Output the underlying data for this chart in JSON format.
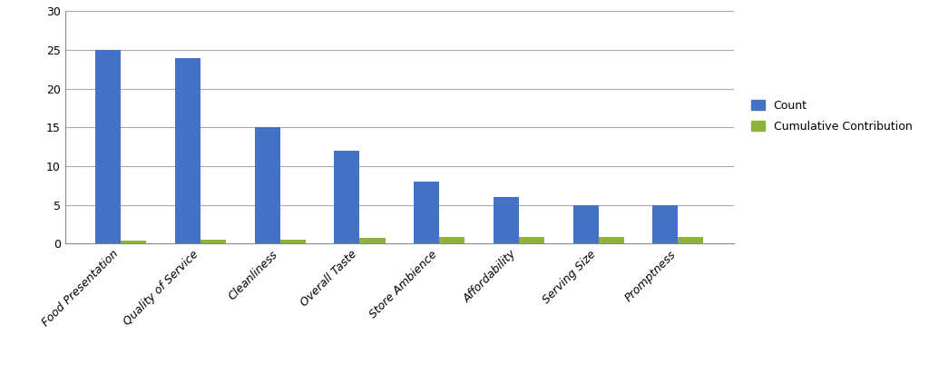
{
  "categories": [
    "Food Presentation",
    "Quality of Service",
    "Cleanliness",
    "Overall Taste",
    "Store Ambience",
    "Affordability",
    "Serving Size",
    "Promptness"
  ],
  "count_values": [
    25,
    24,
    15,
    12,
    8,
    6,
    5,
    5
  ],
  "cumulative_values": [
    0.42,
    0.5,
    0.55,
    0.72,
    0.82,
    0.88,
    0.88,
    0.88
  ],
  "count_color": "#4472C4",
  "cumulative_color": "#8DB33A",
  "ylim": [
    0,
    30
  ],
  "yticks": [
    0,
    5,
    10,
    15,
    20,
    25,
    30
  ],
  "background_color": "#FFFFFF",
  "legend_count": "Count",
  "legend_cumulative": "Cumulative Contribution",
  "bar_width": 0.32,
  "grid_color": "#AAAAAA"
}
